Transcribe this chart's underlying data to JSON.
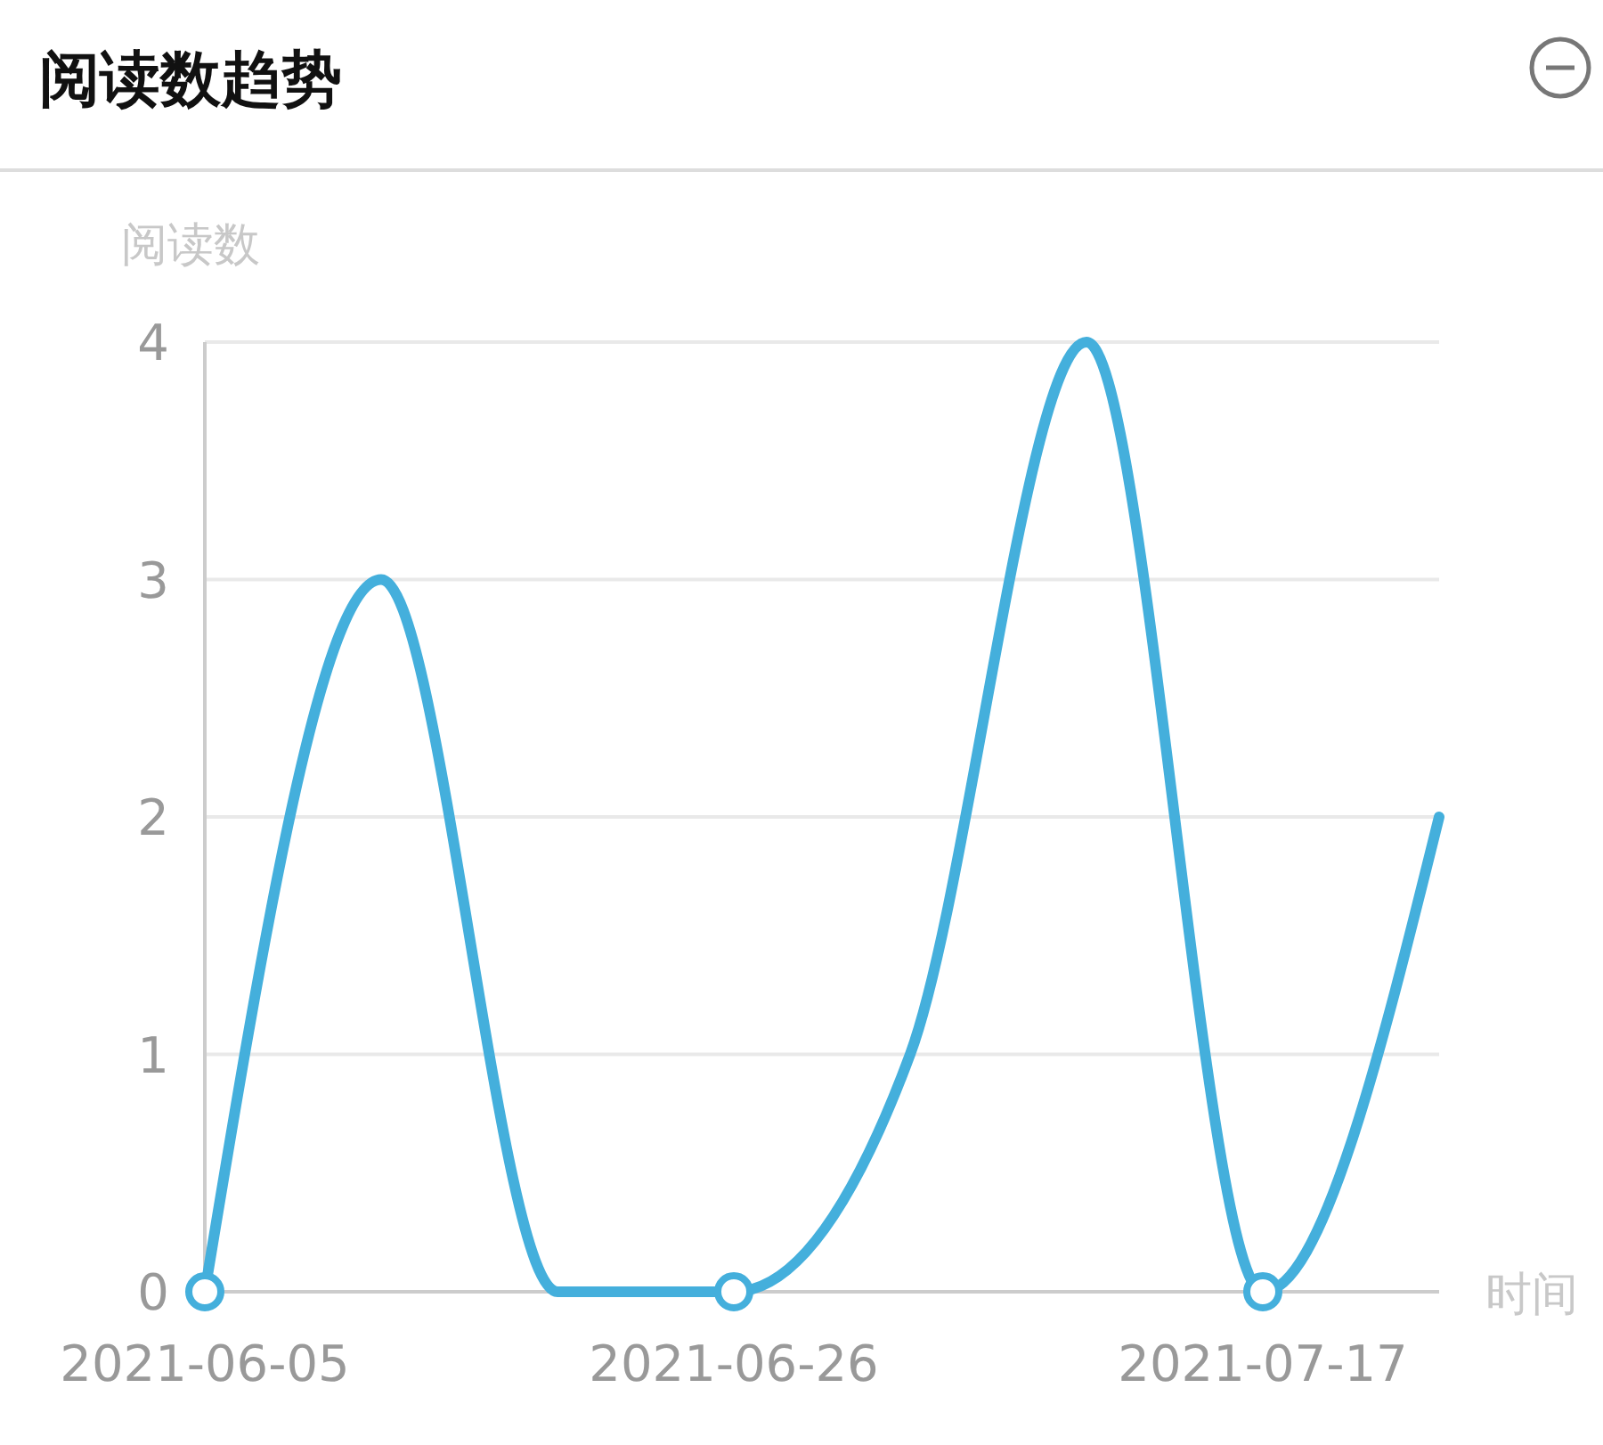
{
  "chart_data": {
    "type": "line",
    "title": "阅读数趋势",
    "xlabel": "时间",
    "ylabel": "阅读数",
    "series": [
      {
        "color": "#44afdc",
        "x": [
          "2021-06-05",
          "2021-06-12",
          "2021-06-19",
          "2021-06-26",
          "2021-07-03",
          "2021-07-10",
          "2021-07-17",
          "2021-07-24"
        ],
        "values": [
          0,
          3,
          0,
          0,
          1,
          4,
          0,
          2
        ]
      },
      {
        "type": "scatter",
        "color": "#44afdc",
        "marker": "circle",
        "x": [
          "2021-06-05",
          "2021-06-26",
          "2021-07-17"
        ],
        "values": [
          0,
          0,
          0
        ]
      }
    ],
    "xlim": [
      "2021-06-05",
      "2021-07-24"
    ],
    "xticks": [
      "2021-06-05",
      "2021-06-26",
      "2021-07-17"
    ],
    "ylim": [
      0,
      4
    ],
    "yticks": [
      0,
      1,
      2,
      3,
      4
    ],
    "grid": "y",
    "line_style": "solid"
  }
}
